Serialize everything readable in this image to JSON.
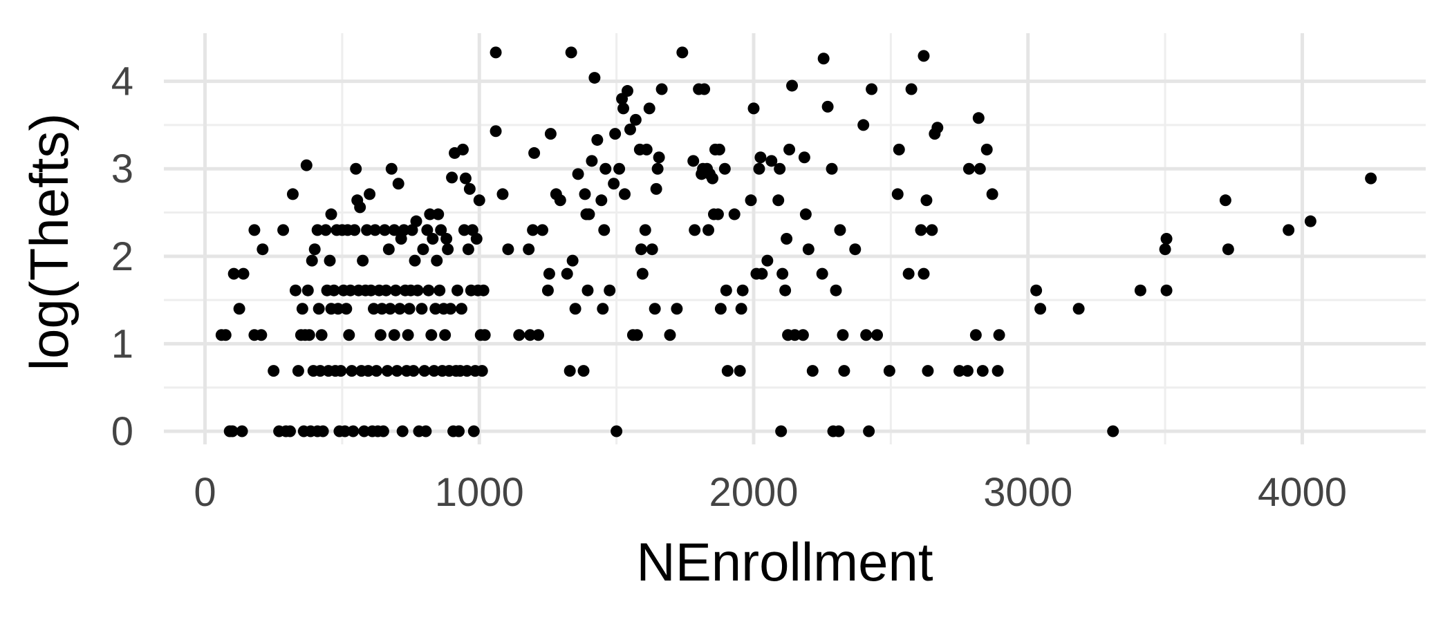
{
  "chart_data": {
    "type": "scatter",
    "title": "",
    "xlabel": "NEnrollment",
    "ylabel": "log(Thefts)",
    "xlim": [
      -150,
      4450
    ],
    "ylim": [
      -0.15,
      4.55
    ],
    "x_ticks": [
      0,
      1000,
      2000,
      3000,
      4000
    ],
    "y_ticks": [
      0,
      1,
      2,
      3,
      4
    ],
    "x_tick_labels": [
      "0",
      "1000",
      "2000",
      "3000",
      "4000"
    ],
    "y_tick_labels": [
      "0",
      "1",
      "2",
      "3",
      "4"
    ],
    "x_minor": [
      500,
      1500,
      2500,
      3500
    ],
    "y_minor": [
      0.5,
      1.5,
      2.5,
      3.5
    ],
    "grid": true,
    "legend": "none",
    "point_color": "#000000",
    "background": "#ffffff",
    "series": [
      {
        "points": [
          [
            60,
            1.1
          ],
          [
            75,
            1.1
          ],
          [
            90,
            0
          ],
          [
            100,
            0
          ],
          [
            105,
            1.8
          ],
          [
            125,
            1.4
          ],
          [
            135,
            0
          ],
          [
            140,
            1.8
          ],
          [
            180,
            1.1
          ],
          [
            180,
            2.3
          ],
          [
            205,
            1.1
          ],
          [
            210,
            2.08
          ],
          [
            250,
            0.69
          ],
          [
            270,
            0
          ],
          [
            285,
            2.3
          ],
          [
            295,
            0
          ],
          [
            310,
            0
          ],
          [
            320,
            2.71
          ],
          [
            330,
            1.61
          ],
          [
            340,
            0.69
          ],
          [
            350,
            1.1
          ],
          [
            355,
            1.4
          ],
          [
            360,
            0
          ],
          [
            365,
            1.1
          ],
          [
            370,
            3.04
          ],
          [
            375,
            1.61
          ],
          [
            380,
            1.1
          ],
          [
            385,
            0
          ],
          [
            390,
            1.95
          ],
          [
            395,
            0.69
          ],
          [
            400,
            2.08
          ],
          [
            410,
            0
          ],
          [
            410,
            2.3
          ],
          [
            415,
            1.4
          ],
          [
            420,
            0.69
          ],
          [
            425,
            1.1
          ],
          [
            430,
            0
          ],
          [
            440,
            2.3
          ],
          [
            445,
            1.61
          ],
          [
            450,
            0.69
          ],
          [
            455,
            1.95
          ],
          [
            460,
            1.4
          ],
          [
            460,
            2.48
          ],
          [
            470,
            1.61
          ],
          [
            475,
            0.69
          ],
          [
            480,
            2.3
          ],
          [
            485,
            1.4
          ],
          [
            490,
            0
          ],
          [
            495,
            0.69
          ],
          [
            500,
            2.3
          ],
          [
            505,
            1.61
          ],
          [
            510,
            0
          ],
          [
            515,
            1.4
          ],
          [
            520,
            2.3
          ],
          [
            525,
            1.1
          ],
          [
            530,
            1.61
          ],
          [
            535,
            0.69
          ],
          [
            540,
            0
          ],
          [
            545,
            2.3
          ],
          [
            550,
            3.0
          ],
          [
            555,
            2.64
          ],
          [
            560,
            1.61
          ],
          [
            565,
            2.56
          ],
          [
            570,
            0.69
          ],
          [
            575,
            1.95
          ],
          [
            580,
            0
          ],
          [
            585,
            1.61
          ],
          [
            590,
            2.3
          ],
          [
            595,
            0.69
          ],
          [
            600,
            2.71
          ],
          [
            605,
            1.61
          ],
          [
            610,
            0
          ],
          [
            615,
            1.4
          ],
          [
            620,
            2.3
          ],
          [
            625,
            0.69
          ],
          [
            630,
            0
          ],
          [
            635,
            1.61
          ],
          [
            640,
            1.1
          ],
          [
            645,
            1.4
          ],
          [
            650,
            0
          ],
          [
            655,
            2.3
          ],
          [
            660,
            1.61
          ],
          [
            665,
            0.69
          ],
          [
            670,
            2.08
          ],
          [
            675,
            1.4
          ],
          [
            680,
            3.0
          ],
          [
            690,
            2.3
          ],
          [
            690,
            1.1
          ],
          [
            695,
            1.61
          ],
          [
            700,
            0.69
          ],
          [
            705,
            2.83
          ],
          [
            710,
            1.4
          ],
          [
            715,
            2.2
          ],
          [
            720,
            0
          ],
          [
            725,
            2.3
          ],
          [
            730,
            1.61
          ],
          [
            735,
            0.69
          ],
          [
            740,
            1.1
          ],
          [
            745,
            1.4
          ],
          [
            750,
            1.61
          ],
          [
            755,
            2.3
          ],
          [
            760,
            0.69
          ],
          [
            765,
            1.95
          ],
          [
            770,
            2.4
          ],
          [
            775,
            1.61
          ],
          [
            780,
            0
          ],
          [
            790,
            1.4
          ],
          [
            795,
            2.08
          ],
          [
            800,
            0.69
          ],
          [
            805,
            0
          ],
          [
            810,
            2.3
          ],
          [
            815,
            1.61
          ],
          [
            820,
            2.48
          ],
          [
            825,
            1.1
          ],
          [
            830,
            2.2
          ],
          [
            835,
            0.69
          ],
          [
            840,
            1.4
          ],
          [
            845,
            1.95
          ],
          [
            850,
            2.48
          ],
          [
            855,
            1.61
          ],
          [
            860,
            2.3
          ],
          [
            865,
            0.69
          ],
          [
            870,
            1.4
          ],
          [
            875,
            1.1
          ],
          [
            880,
            2.2
          ],
          [
            885,
            2.08
          ],
          [
            890,
            0.69
          ],
          [
            895,
            1.4
          ],
          [
            900,
            2.9
          ],
          [
            905,
            0
          ],
          [
            910,
            3.18
          ],
          [
            915,
            0.69
          ],
          [
            920,
            1.61
          ],
          [
            925,
            0
          ],
          [
            930,
            0.69
          ],
          [
            935,
            1.4
          ],
          [
            940,
            3.22
          ],
          [
            945,
            2.3
          ],
          [
            950,
            2.89
          ],
          [
            955,
            0.69
          ],
          [
            960,
            2.08
          ],
          [
            965,
            2.77
          ],
          [
            970,
            1.61
          ],
          [
            975,
            2.3
          ],
          [
            980,
            0
          ],
          [
            985,
            0.69
          ],
          [
            990,
            2.2
          ],
          [
            995,
            1.61
          ],
          [
            1000,
            2.64
          ],
          [
            1005,
            1.1
          ],
          [
            1010,
            0.69
          ],
          [
            1015,
            1.61
          ],
          [
            1020,
            1.1
          ],
          [
            1060,
            4.33
          ],
          [
            1060,
            3.43
          ],
          [
            1085,
            2.71
          ],
          [
            1105,
            2.08
          ],
          [
            1145,
            1.1
          ],
          [
            1180,
            2.08
          ],
          [
            1185,
            1.1
          ],
          [
            1195,
            2.3
          ],
          [
            1200,
            3.18
          ],
          [
            1215,
            1.1
          ],
          [
            1230,
            2.3
          ],
          [
            1250,
            1.61
          ],
          [
            1255,
            1.8
          ],
          [
            1260,
            3.4
          ],
          [
            1280,
            2.71
          ],
          [
            1295,
            2.64
          ],
          [
            1320,
            1.8
          ],
          [
            1330,
            0.69
          ],
          [
            1335,
            4.33
          ],
          [
            1340,
            1.95
          ],
          [
            1350,
            1.4
          ],
          [
            1360,
            2.94
          ],
          [
            1380,
            0.69
          ],
          [
            1385,
            2.71
          ],
          [
            1390,
            2.48
          ],
          [
            1395,
            1.61
          ],
          [
            1400,
            2.48
          ],
          [
            1410,
            3.09
          ],
          [
            1420,
            4.04
          ],
          [
            1430,
            3.33
          ],
          [
            1445,
            2.64
          ],
          [
            1450,
            1.4
          ],
          [
            1455,
            2.3
          ],
          [
            1460,
            3.0
          ],
          [
            1475,
            1.61
          ],
          [
            1490,
            2.83
          ],
          [
            1495,
            3.4
          ],
          [
            1500,
            0
          ],
          [
            1510,
            3.0
          ],
          [
            1520,
            3.8
          ],
          [
            1525,
            3.69
          ],
          [
            1530,
            2.71
          ],
          [
            1540,
            3.89
          ],
          [
            1550,
            3.45
          ],
          [
            1560,
            1.1
          ],
          [
            1570,
            3.56
          ],
          [
            1575,
            1.1
          ],
          [
            1585,
            3.22
          ],
          [
            1590,
            2.08
          ],
          [
            1595,
            1.8
          ],
          [
            1605,
            2.3
          ],
          [
            1610,
            3.22
          ],
          [
            1620,
            3.69
          ],
          [
            1630,
            2.08
          ],
          [
            1640,
            1.4
          ],
          [
            1645,
            2.77
          ],
          [
            1650,
            3.0
          ],
          [
            1655,
            3.13
          ],
          [
            1665,
            3.91
          ],
          [
            1695,
            1.1
          ],
          [
            1720,
            1.4
          ],
          [
            1740,
            4.33
          ],
          [
            1780,
            3.09
          ],
          [
            1785,
            2.3
          ],
          [
            1800,
            3.91
          ],
          [
            1810,
            2.94
          ],
          [
            1815,
            3.0
          ],
          [
            1820,
            3.91
          ],
          [
            1830,
            3.0
          ],
          [
            1835,
            2.3
          ],
          [
            1840,
            2.94
          ],
          [
            1850,
            2.89
          ],
          [
            1855,
            2.48
          ],
          [
            1860,
            3.22
          ],
          [
            1870,
            2.48
          ],
          [
            1875,
            3.22
          ],
          [
            1880,
            1.4
          ],
          [
            1895,
            3.0
          ],
          [
            1900,
            1.61
          ],
          [
            1905,
            0.69
          ],
          [
            1930,
            2.48
          ],
          [
            1950,
            0.69
          ],
          [
            1955,
            1.4
          ],
          [
            1960,
            1.61
          ],
          [
            1990,
            2.64
          ],
          [
            2000,
            3.69
          ],
          [
            2010,
            1.8
          ],
          [
            2020,
            3.0
          ],
          [
            2025,
            3.13
          ],
          [
            2030,
            1.8
          ],
          [
            2050,
            1.95
          ],
          [
            2065,
            3.09
          ],
          [
            2090,
            2.64
          ],
          [
            2095,
            3.0
          ],
          [
            2100,
            0
          ],
          [
            2105,
            1.8
          ],
          [
            2115,
            1.61
          ],
          [
            2120,
            2.2
          ],
          [
            2125,
            1.1
          ],
          [
            2130,
            3.22
          ],
          [
            2140,
            3.95
          ],
          [
            2150,
            1.1
          ],
          [
            2180,
            1.1
          ],
          [
            2185,
            3.13
          ],
          [
            2190,
            2.48
          ],
          [
            2200,
            2.08
          ],
          [
            2215,
            0.69
          ],
          [
            2250,
            1.8
          ],
          [
            2255,
            4.26
          ],
          [
            2270,
            3.71
          ],
          [
            2285,
            3.0
          ],
          [
            2290,
            0
          ],
          [
            2300,
            1.61
          ],
          [
            2310,
            0
          ],
          [
            2315,
            2.3
          ],
          [
            2325,
            1.1
          ],
          [
            2330,
            0.69
          ],
          [
            2370,
            2.08
          ],
          [
            2400,
            3.5
          ],
          [
            2410,
            1.1
          ],
          [
            2420,
            0
          ],
          [
            2430,
            3.91
          ],
          [
            2450,
            1.1
          ],
          [
            2495,
            0.69
          ],
          [
            2525,
            2.71
          ],
          [
            2530,
            3.22
          ],
          [
            2565,
            1.8
          ],
          [
            2575,
            3.91
          ],
          [
            2610,
            2.3
          ],
          [
            2620,
            1.8
          ],
          [
            2620,
            4.29
          ],
          [
            2630,
            2.64
          ],
          [
            2635,
            0.69
          ],
          [
            2650,
            2.3
          ],
          [
            2660,
            3.4
          ],
          [
            2670,
            3.47
          ],
          [
            2750,
            0.69
          ],
          [
            2780,
            0.69
          ],
          [
            2785,
            3.0
          ],
          [
            2810,
            1.1
          ],
          [
            2820,
            3.58
          ],
          [
            2825,
            3.0
          ],
          [
            2835,
            0.69
          ],
          [
            2850,
            3.22
          ],
          [
            2870,
            2.71
          ],
          [
            2890,
            0.69
          ],
          [
            2895,
            1.1
          ],
          [
            3030,
            1.61
          ],
          [
            3045,
            1.4
          ],
          [
            3185,
            1.4
          ],
          [
            3310,
            0
          ],
          [
            3410,
            1.61
          ],
          [
            3500,
            2.08
          ],
          [
            3505,
            2.2
          ],
          [
            3505,
            1.61
          ],
          [
            3720,
            2.64
          ],
          [
            3730,
            2.08
          ],
          [
            3950,
            2.3
          ],
          [
            4030,
            2.4
          ],
          [
            4250,
            2.89
          ]
        ]
      }
    ]
  }
}
